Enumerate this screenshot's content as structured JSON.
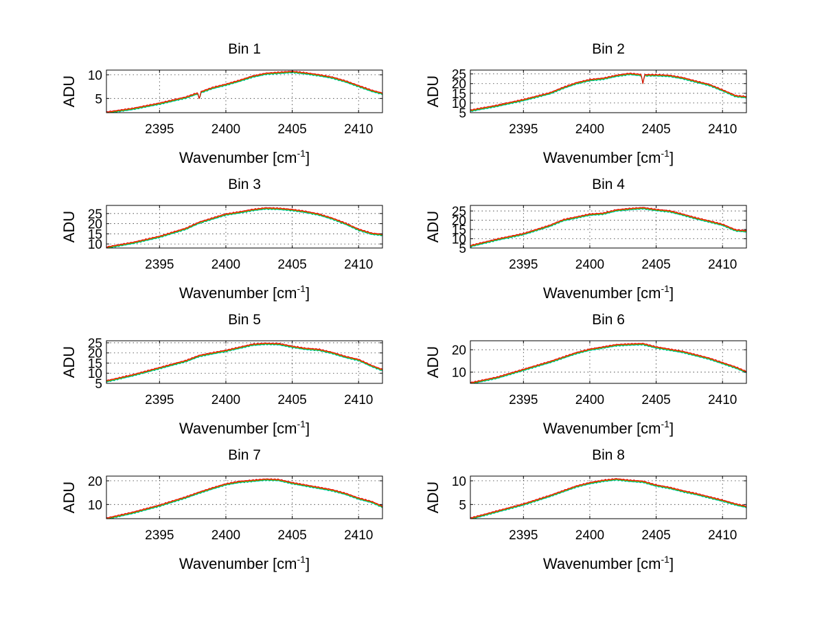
{
  "figure": {
    "xlim": [
      2391,
      2411.8
    ],
    "x_ticks": [
      2395,
      2400,
      2405,
      2410
    ],
    "xlabel_main": "Wavenumber [cm",
    "xlabel_sup": "-1",
    "xlabel_close": "]",
    "ylabel": "ADU",
    "series_colors": [
      "#00d5d5",
      "#00a000",
      "#ff8c00",
      "#dd0000"
    ],
    "grid": true
  },
  "chart_data": [
    {
      "type": "line",
      "title": "Bin 1",
      "ylabel": "ADU",
      "xlabel": "Wavenumber [cm-1]",
      "xlim": [
        2391,
        2411.8
      ],
      "ylim": [
        2,
        11
      ],
      "y_ticks": [
        5,
        10
      ],
      "x": [
        2391,
        2393,
        2395,
        2397,
        2398,
        2399,
        2400,
        2401,
        2402,
        2403,
        2404,
        2405,
        2406,
        2407,
        2408,
        2409,
        2410,
        2411,
        2411.8
      ],
      "series": [
        {
          "values": [
            2.0,
            2.8,
            3.9,
            5.2,
            6.2,
            7.2,
            7.9,
            8.7,
            9.6,
            10.2,
            10.4,
            10.6,
            10.3,
            9.9,
            9.4,
            8.6,
            7.6,
            6.6,
            6.0
          ]
        }
      ],
      "spikes": [
        {
          "x": 2398.0,
          "value": 4.8
        }
      ]
    },
    {
      "type": "line",
      "title": "Bin 2",
      "ylabel": "ADU",
      "xlabel": "Wavenumber [cm-1]",
      "xlim": [
        2391,
        2411.8
      ],
      "ylim": [
        5,
        27
      ],
      "y_ticks": [
        5,
        10,
        15,
        20,
        25
      ],
      "x": [
        2391,
        2393,
        2395,
        2397,
        2398,
        2399,
        2400,
        2401,
        2402,
        2403,
        2404,
        2405,
        2406,
        2407,
        2408,
        2409,
        2410,
        2411,
        2411.8
      ],
      "series": [
        {
          "values": [
            6.0,
            8.5,
            11.5,
            15.0,
            17.8,
            20.2,
            21.8,
            22.5,
            24.0,
            25.0,
            24.3,
            24.3,
            24.0,
            22.8,
            21.0,
            19.3,
            16.5,
            13.5,
            13.0
          ]
        }
      ],
      "spikes": [
        {
          "x": 2404.0,
          "value": 20.0
        }
      ]
    },
    {
      "type": "line",
      "title": "Bin 3",
      "ylabel": "ADU",
      "xlabel": "Wavenumber [cm-1]",
      "xlim": [
        2391,
        2411.8
      ],
      "ylim": [
        8,
        29
      ],
      "y_ticks": [
        10,
        15,
        20,
        25
      ],
      "x": [
        2391,
        2393,
        2395,
        2397,
        2398,
        2399,
        2400,
        2401,
        2402,
        2403,
        2404,
        2405,
        2406,
        2407,
        2408,
        2409,
        2410,
        2411,
        2411.8
      ],
      "series": [
        {
          "values": [
            8.2,
            10.5,
            13.5,
            17.5,
            20.5,
            22.5,
            24.5,
            25.5,
            26.7,
            27.5,
            27.3,
            26.7,
            25.8,
            24.5,
            22.5,
            20.0,
            17.0,
            15.0,
            14.5
          ]
        }
      ]
    },
    {
      "type": "line",
      "title": "Bin 4",
      "ylabel": "ADU",
      "xlabel": "Wavenumber [cm-1]",
      "xlim": [
        2391,
        2411.8
      ],
      "ylim": [
        5,
        28
      ],
      "y_ticks": [
        5,
        10,
        15,
        20,
        25
      ],
      "x": [
        2391,
        2393,
        2395,
        2397,
        2398,
        2399,
        2400,
        2401,
        2402,
        2403,
        2404,
        2405,
        2406,
        2407,
        2408,
        2409,
        2410,
        2411,
        2411.8
      ],
      "series": [
        {
          "values": [
            6.0,
            9.5,
            12.5,
            17.0,
            20.0,
            21.5,
            23.0,
            23.5,
            25.3,
            26.0,
            26.5,
            25.5,
            24.8,
            23.0,
            21.0,
            19.3,
            17.5,
            14.5,
            14.0
          ]
        }
      ]
    },
    {
      "type": "line",
      "title": "Bin 5",
      "ylabel": "ADU",
      "xlabel": "Wavenumber [cm-1]",
      "xlim": [
        2391,
        2411.8
      ],
      "ylim": [
        5,
        26
      ],
      "y_ticks": [
        5,
        10,
        15,
        20,
        25
      ],
      "x": [
        2391,
        2393,
        2395,
        2397,
        2398,
        2399,
        2400,
        2401,
        2402,
        2403,
        2404,
        2405,
        2406,
        2407,
        2408,
        2409,
        2410,
        2411,
        2411.8
      ],
      "series": [
        {
          "values": [
            6.0,
            9.0,
            12.5,
            16.0,
            18.5,
            19.8,
            21.0,
            22.5,
            24.0,
            24.5,
            24.3,
            23.0,
            22.0,
            21.5,
            20.0,
            18.0,
            16.5,
            13.5,
            11.5
          ]
        }
      ]
    },
    {
      "type": "line",
      "title": "Bin 6",
      "ylabel": "ADU",
      "xlabel": "Wavenumber [cm-1]",
      "xlim": [
        2391,
        2411.8
      ],
      "ylim": [
        5,
        24
      ],
      "y_ticks": [
        10,
        20
      ],
      "x": [
        2391,
        2393,
        2395,
        2397,
        2398,
        2399,
        2400,
        2401,
        2402,
        2403,
        2404,
        2405,
        2406,
        2407,
        2408,
        2409,
        2410,
        2411,
        2411.8
      ],
      "series": [
        {
          "values": [
            5.0,
            7.5,
            11.0,
            14.5,
            16.5,
            18.5,
            20.0,
            21.0,
            22.0,
            22.3,
            22.5,
            21.0,
            20.0,
            19.0,
            17.5,
            16.0,
            14.0,
            12.0,
            10.0
          ]
        }
      ]
    },
    {
      "type": "line",
      "title": "Bin 7",
      "ylabel": "ADU",
      "xlabel": "Wavenumber [cm-1]",
      "xlim": [
        2391,
        2411.8
      ],
      "ylim": [
        4,
        22
      ],
      "y_ticks": [
        10,
        20
      ],
      "x": [
        2391,
        2393,
        2395,
        2397,
        2398,
        2399,
        2400,
        2401,
        2402,
        2403,
        2404,
        2405,
        2406,
        2407,
        2408,
        2409,
        2410,
        2411,
        2411.8
      ],
      "series": [
        {
          "values": [
            4.0,
            6.5,
            9.5,
            13.0,
            15.0,
            16.8,
            18.5,
            19.5,
            20.0,
            20.5,
            20.3,
            19.0,
            18.0,
            17.0,
            16.0,
            14.5,
            12.5,
            11.0,
            9.0
          ]
        }
      ]
    },
    {
      "type": "line",
      "title": "Bin 8",
      "ylabel": "ADU",
      "xlabel": "Wavenumber [cm-1]",
      "xlim": [
        2391,
        2411.8
      ],
      "ylim": [
        2,
        11
      ],
      "y_ticks": [
        5,
        10
      ],
      "x": [
        2391,
        2393,
        2395,
        2397,
        2398,
        2399,
        2400,
        2401,
        2402,
        2403,
        2404,
        2405,
        2406,
        2407,
        2408,
        2409,
        2410,
        2411,
        2411.8
      ],
      "series": [
        {
          "values": [
            2.0,
            3.5,
            5.0,
            6.8,
            7.8,
            8.8,
            9.5,
            10.0,
            10.3,
            10.0,
            9.8,
            9.0,
            8.5,
            7.8,
            7.2,
            6.5,
            5.8,
            5.0,
            4.5
          ]
        }
      ]
    }
  ]
}
